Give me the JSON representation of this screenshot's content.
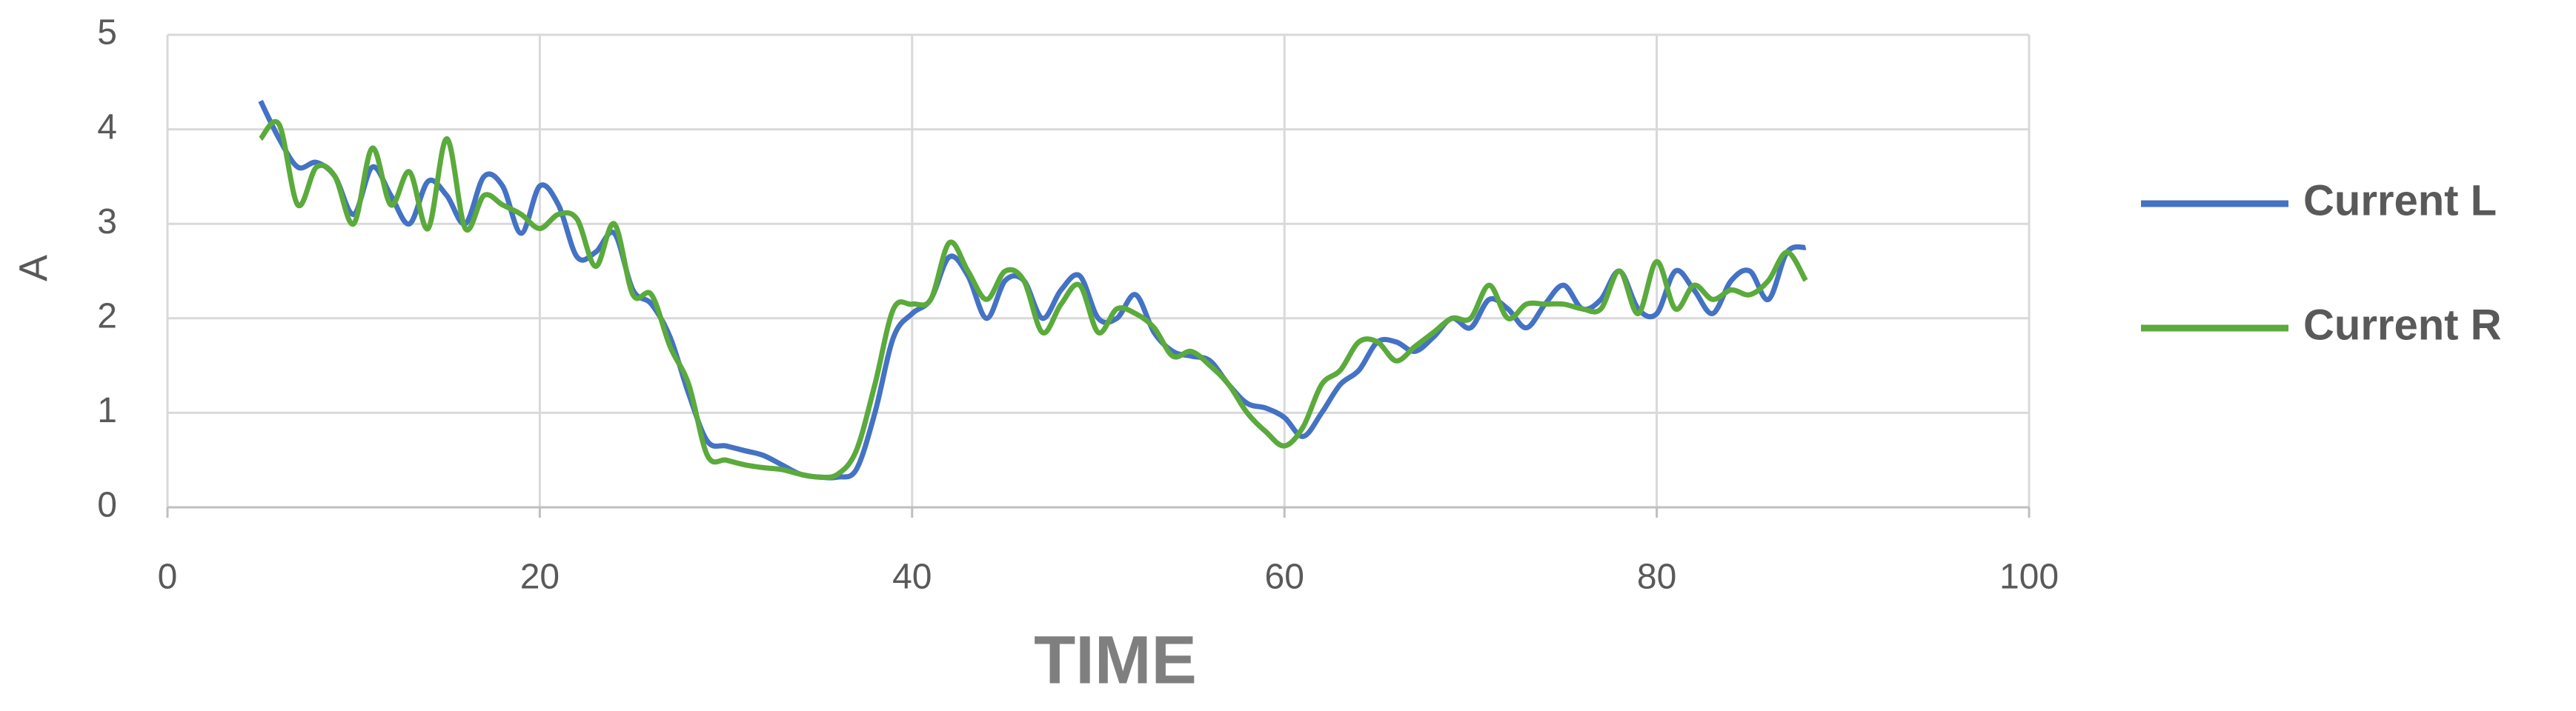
{
  "chart_data": {
    "type": "line",
    "x_label": "TIME",
    "y_label": "A",
    "x": [
      5,
      6,
      7,
      8,
      9,
      10,
      11,
      12,
      13,
      14,
      15,
      16,
      17,
      18,
      19,
      20,
      21,
      22,
      23,
      24,
      25,
      26,
      27,
      28,
      29,
      30,
      31,
      32,
      33,
      34,
      35,
      36,
      37,
      38,
      39,
      40,
      41,
      42,
      43,
      44,
      45,
      46,
      47,
      48,
      49,
      50,
      51,
      52,
      53,
      54,
      55,
      56,
      57,
      58,
      59,
      60,
      61,
      62,
      63,
      64,
      65,
      66,
      67,
      68,
      69,
      70,
      71,
      72,
      73,
      74,
      75,
      76,
      77,
      78,
      79,
      80,
      81,
      82,
      83,
      84,
      85,
      86,
      87,
      88
    ],
    "series": [
      {
        "name": "Current L",
        "color": "#4472c4",
        "values": [
          4.3,
          3.9,
          3.6,
          3.65,
          3.5,
          3.1,
          3.6,
          3.3,
          3.0,
          3.45,
          3.3,
          3.0,
          3.5,
          3.4,
          2.9,
          3.4,
          3.2,
          2.65,
          2.7,
          2.9,
          2.3,
          2.15,
          1.8,
          1.2,
          0.7,
          0.65,
          0.6,
          0.55,
          0.45,
          0.35,
          0.32,
          0.32,
          0.4,
          1.0,
          1.8,
          2.05,
          2.2,
          2.65,
          2.45,
          2.0,
          2.4,
          2.4,
          2.0,
          2.3,
          2.45,
          2.0,
          2.0,
          2.25,
          1.85,
          1.65,
          1.6,
          1.55,
          1.3,
          1.1,
          1.05,
          0.95,
          0.75,
          1.0,
          1.3,
          1.45,
          1.75,
          1.75,
          1.65,
          1.8,
          2.0,
          1.9,
          2.2,
          2.1,
          1.9,
          2.15,
          2.35,
          2.1,
          2.2,
          2.5,
          2.1,
          2.05,
          2.5,
          2.3,
          2.05,
          2.4,
          2.5,
          2.2,
          2.7,
          2.75
        ]
      },
      {
        "name": "Current R",
        "color": "#5aaa3c",
        "values": [
          3.9,
          4.05,
          3.2,
          3.6,
          3.5,
          3.0,
          3.8,
          3.2,
          3.55,
          2.95,
          3.9,
          2.95,
          3.3,
          3.2,
          3.1,
          2.95,
          3.1,
          3.05,
          2.55,
          3.0,
          2.25,
          2.25,
          1.7,
          1.3,
          0.55,
          0.5,
          0.45,
          0.42,
          0.4,
          0.35,
          0.32,
          0.35,
          0.6,
          1.3,
          2.1,
          2.15,
          2.2,
          2.8,
          2.5,
          2.2,
          2.5,
          2.4,
          1.85,
          2.15,
          2.35,
          1.85,
          2.1,
          2.05,
          1.9,
          1.6,
          1.65,
          1.5,
          1.3,
          1.0,
          0.8,
          0.65,
          0.85,
          1.3,
          1.45,
          1.75,
          1.75,
          1.55,
          1.7,
          1.85,
          2.0,
          2.0,
          2.35,
          2.0,
          2.15,
          2.15,
          2.15,
          2.1,
          2.1,
          2.5,
          2.05,
          2.6,
          2.1,
          2.35,
          2.2,
          2.3,
          2.25,
          2.4,
          2.7,
          2.4
        ]
      }
    ],
    "xlim": [
      0,
      100
    ],
    "xticks": [
      0,
      20,
      40,
      60,
      80,
      100
    ],
    "ylim": [
      0,
      5
    ],
    "yticks": [
      0,
      1,
      2,
      3,
      4,
      5
    ],
    "grid": true,
    "legend": "right"
  }
}
